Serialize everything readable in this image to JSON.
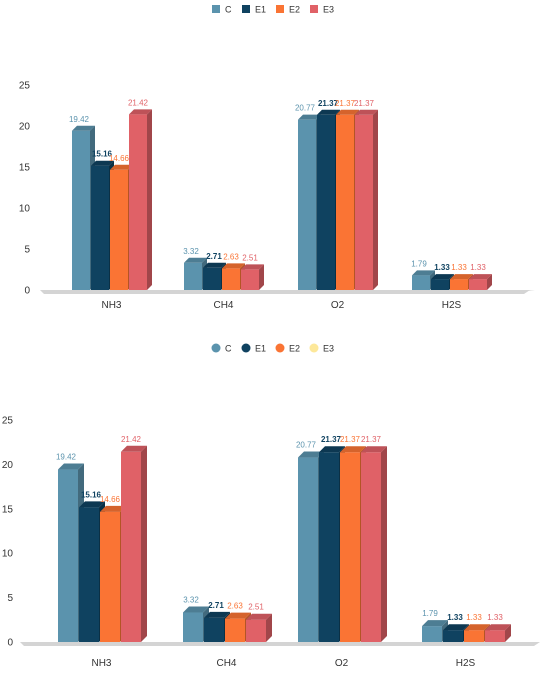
{
  "colors": {
    "C": "#5b93ad",
    "E1": "#0f4260",
    "E2": "#fa7434",
    "E3": "#e06167",
    "E3_legend_bottom": "#fde89a",
    "axis_text": "#333333",
    "floor": "#e6e6e6"
  },
  "chart_data": [
    {
      "type": "bar",
      "style": "3d-column",
      "categories": [
        "NH3",
        "CH4",
        "O2",
        "H2S"
      ],
      "series": [
        {
          "name": "C",
          "values": [
            19.42,
            3.32,
            20.77,
            1.79
          ]
        },
        {
          "name": "E1",
          "values": [
            15.16,
            2.71,
            21.37,
            1.33
          ]
        },
        {
          "name": "E2",
          "values": [
            14.66,
            2.63,
            21.37,
            1.33
          ]
        },
        {
          "name": "E3",
          "values": [
            21.42,
            2.51,
            21.37,
            1.33
          ]
        }
      ],
      "ylim": [
        0,
        25
      ],
      "yticks": [
        "0",
        "5",
        "10",
        "15",
        "20",
        "25"
      ],
      "legend": [
        "C",
        "E1",
        "E2",
        "E3"
      ],
      "legend_position": "top",
      "grid": false
    },
    {
      "type": "bar",
      "style": "3d-column",
      "categories": [
        "NH3",
        "CH4",
        "O2",
        "H2S"
      ],
      "series": [
        {
          "name": "C",
          "values": [
            19.42,
            3.32,
            20.77,
            1.79
          ]
        },
        {
          "name": "E1",
          "values": [
            15.16,
            2.71,
            21.37,
            1.33
          ]
        },
        {
          "name": "E2",
          "values": [
            14.66,
            2.63,
            21.37,
            1.33
          ]
        },
        {
          "name": "E3",
          "values": [
            21.42,
            2.51,
            21.37,
            1.33
          ]
        }
      ],
      "ylim": [
        0,
        25
      ],
      "yticks": [
        "0",
        "5",
        "10",
        "15",
        "20",
        "25"
      ],
      "legend": [
        "C",
        "E1",
        "E2",
        "E3"
      ],
      "legend_position": "top",
      "grid": false
    }
  ]
}
